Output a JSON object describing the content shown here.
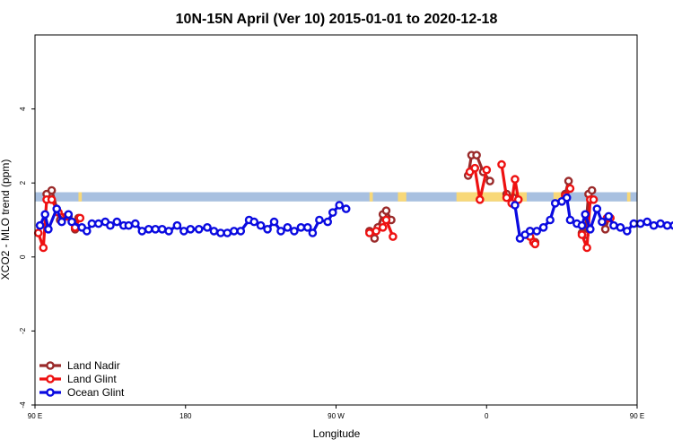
{
  "chart_data": {
    "type": "line",
    "title": "10N-15N April (Ver 10)   2015-01-01 to 2020-12-18",
    "xlabel": "Longitude",
    "ylabel": "XCO2 - MLO trend (ppm)",
    "xlim": [
      90,
      450
    ],
    "ylim": [
      -4,
      6
    ],
    "x_ticks": [
      {
        "value": 90,
        "label": "90 E"
      },
      {
        "value": 180,
        "label": "180"
      },
      {
        "value": 270,
        "label": "90 W"
      },
      {
        "value": 360,
        "label": "0"
      },
      {
        "value": 450,
        "label": "90 E"
      },
      {
        "value": 540,
        "label": "180"
      }
    ],
    "y_ticks": [
      {
        "value": -4,
        "label": "-4"
      },
      {
        "value": -2,
        "label": "-2"
      },
      {
        "value": 0,
        "label": "0"
      },
      {
        "value": 2,
        "label": "2"
      },
      {
        "value": 4,
        "label": "4"
      }
    ],
    "grid": false,
    "legend_position": "bottom-left",
    "band": {
      "y0": 1.5,
      "y1": 1.75,
      "color": "#a8c0e0"
    },
    "land_mask_color": "#f8d878",
    "land_mask_segments": [
      {
        "x0": 116,
        "x1": 118
      },
      {
        "x0": 290,
        "x1": 292
      },
      {
        "x0": 307,
        "x1": 312
      },
      {
        "x0": 342,
        "x1": 384
      },
      {
        "x0": 400,
        "x1": 405
      },
      {
        "x0": 444,
        "x1": 446
      }
    ],
    "series": [
      {
        "name": "Land Nadir",
        "color": "#9a2a2a",
        "segments": [
          [
            [
              97,
              1.7
            ],
            [
              100,
              1.8
            ],
            [
              105,
              1.0
            ],
            [
              110,
              1.1
            ],
            [
              114,
              0.75
            ],
            [
              116,
              1.05
            ]
          ],
          [
            [
              290,
              0.7
            ],
            [
              293,
              0.5
            ],
            [
              295,
              0.8
            ],
            [
              298,
              1.15
            ],
            [
              300,
              1.25
            ],
            [
              303,
              1.0
            ]
          ],
          [
            [
              349,
              2.2
            ],
            [
              351,
              2.75
            ],
            [
              354,
              2.75
            ],
            [
              358,
              2.3
            ],
            [
              362,
              2.05
            ]
          ],
          [
            [
              372,
              1.7
            ],
            [
              376,
              1.6
            ]
          ],
          [
            [
              384,
              0.6
            ],
            [
              386,
              0.7
            ],
            [
              389,
              0.4
            ]
          ],
          [
            [
              407,
              1.7
            ],
            [
              409,
              2.05
            ]
          ],
          [
            [
              417,
              0.65
            ],
            [
              419,
              0.6
            ],
            [
              421,
              1.7
            ],
            [
              423,
              1.8
            ]
          ],
          [
            [
              431,
              0.75
            ],
            [
              433,
              1.05
            ]
          ]
        ]
      },
      {
        "name": "Land Glint",
        "color": "#ee1111",
        "segments": [
          [
            [
              92,
              0.65
            ],
            [
              95,
              0.25
            ],
            [
              97,
              1.55
            ],
            [
              100,
              1.55
            ],
            [
              104,
              1.2
            ],
            [
              109,
              1.1
            ],
            [
              114,
              0.8
            ],
            [
              117,
              1.05
            ]
          ],
          [
            [
              290,
              0.65
            ],
            [
              294,
              0.7
            ],
            [
              298,
              0.8
            ],
            [
              300,
              1.0
            ],
            [
              304,
              0.55
            ]
          ],
          [
            [
              350,
              2.3
            ],
            [
              353,
              2.4
            ],
            [
              356,
              1.55
            ],
            [
              360,
              2.35
            ]
          ],
          [
            [
              369,
              2.5
            ],
            [
              372,
              1.6
            ],
            [
              375,
              1.45
            ],
            [
              377,
              2.1
            ],
            [
              379,
              1.55
            ]
          ],
          [
            [
              386,
              0.55
            ],
            [
              388,
              0.4
            ],
            [
              389,
              0.35
            ]
          ],
          [
            [
              407,
              1.65
            ],
            [
              410,
              1.85
            ]
          ],
          [
            [
              417,
              0.6
            ],
            [
              420,
              0.25
            ],
            [
              422,
              1.55
            ],
            [
              424,
              1.55
            ]
          ],
          [
            [
              432,
              1.05
            ],
            [
              434,
              1.05
            ]
          ]
        ]
      },
      {
        "name": "Ocean Glint",
        "color": "#0a0ae0",
        "segments": [
          [
            [
              93,
              0.85
            ],
            [
              96,
              1.15
            ],
            [
              98,
              0.75
            ],
            [
              103,
              1.3
            ],
            [
              106,
              0.95
            ],
            [
              110,
              1.15
            ],
            [
              112,
              0.95
            ],
            [
              118,
              0.8
            ],
            [
              121,
              0.7
            ],
            [
              124,
              0.9
            ],
            [
              128,
              0.9
            ],
            [
              132,
              0.95
            ],
            [
              135,
              0.85
            ],
            [
              139,
              0.95
            ],
            [
              143,
              0.85
            ],
            [
              146,
              0.85
            ],
            [
              150,
              0.9
            ],
            [
              154,
              0.7
            ],
            [
              158,
              0.75
            ],
            [
              162,
              0.75
            ],
            [
              166,
              0.75
            ],
            [
              170,
              0.7
            ],
            [
              175,
              0.85
            ],
            [
              179,
              0.7
            ],
            [
              183,
              0.75
            ],
            [
              188,
              0.75
            ],
            [
              193,
              0.8
            ],
            [
              197,
              0.7
            ],
            [
              201,
              0.65
            ],
            [
              205,
              0.65
            ],
            [
              209,
              0.7
            ],
            [
              213,
              0.7
            ],
            [
              218,
              1.0
            ],
            [
              221,
              0.95
            ],
            [
              225,
              0.85
            ],
            [
              229,
              0.75
            ],
            [
              233,
              0.95
            ],
            [
              237,
              0.7
            ],
            [
              241,
              0.8
            ],
            [
              245,
              0.7
            ],
            [
              249,
              0.8
            ],
            [
              253,
              0.8
            ],
            [
              256,
              0.65
            ],
            [
              260,
              1.0
            ],
            [
              265,
              0.95
            ],
            [
              268,
              1.2
            ],
            [
              272,
              1.4
            ],
            [
              276,
              1.3
            ]
          ],
          [
            [
              377,
              1.4
            ],
            [
              380,
              0.5
            ],
            [
              383,
              0.6
            ],
            [
              386,
              0.7
            ],
            [
              390,
              0.7
            ],
            [
              394,
              0.8
            ],
            [
              398,
              1.0
            ],
            [
              401,
              1.45
            ],
            [
              405,
              1.5
            ],
            [
              408,
              1.6
            ],
            [
              410,
              1.0
            ],
            [
              414,
              0.9
            ],
            [
              417,
              0.85
            ],
            [
              419,
              1.15
            ],
            [
              422,
              0.75
            ],
            [
              426,
              1.3
            ],
            [
              429,
              0.95
            ],
            [
              433,
              1.1
            ],
            [
              436,
              0.85
            ],
            [
              440,
              0.8
            ],
            [
              444,
              0.7
            ],
            [
              448,
              0.9
            ],
            [
              452,
              0.9
            ],
            [
              456,
              0.95
            ],
            [
              460,
              0.85
            ],
            [
              464,
              0.9
            ],
            [
              468,
              0.85
            ],
            [
              472,
              0.85
            ],
            [
              476,
              0.9
            ],
            [
              480,
              0.7
            ]
          ]
        ]
      }
    ]
  }
}
